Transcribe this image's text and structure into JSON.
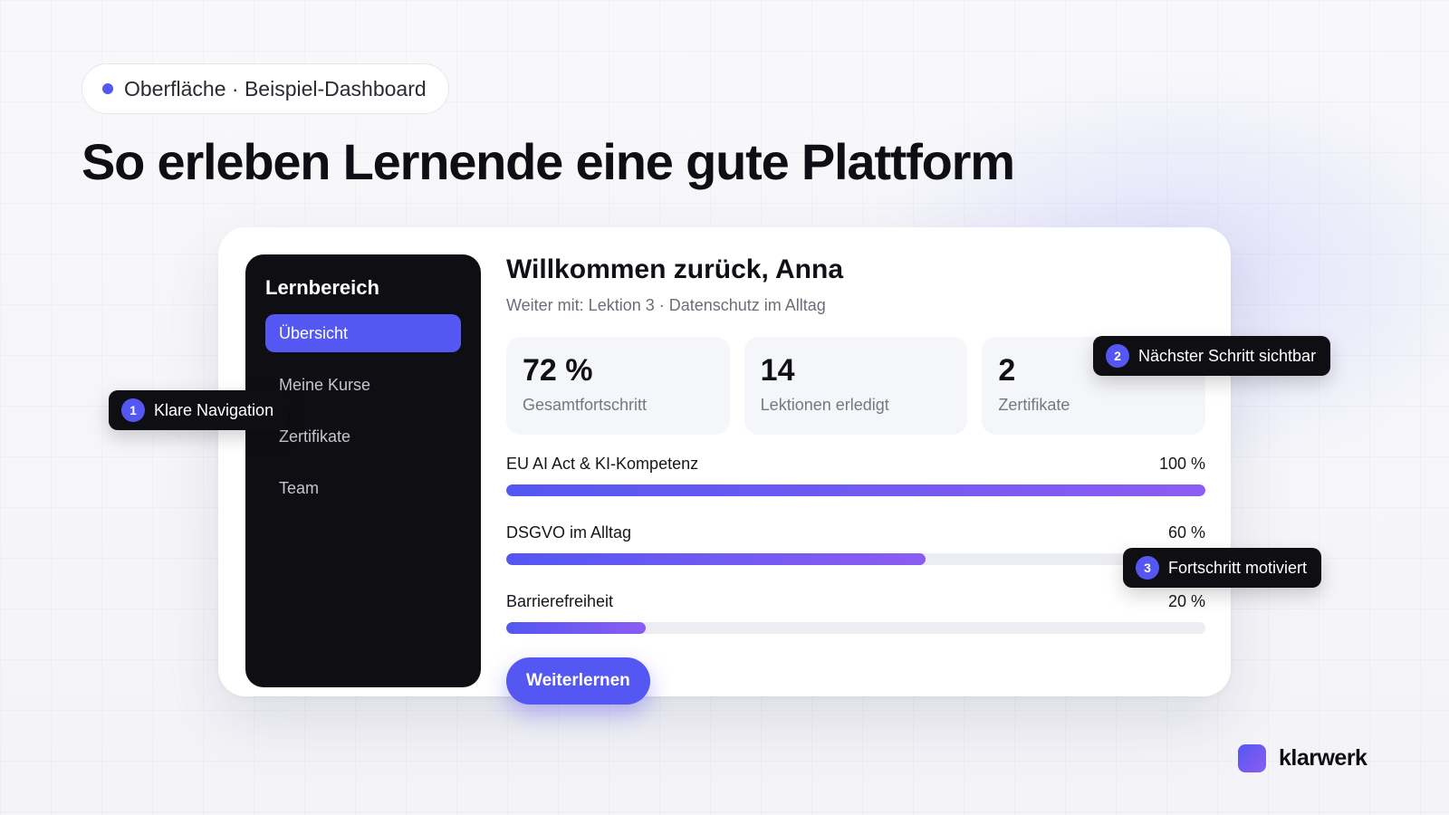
{
  "eyebrow": {
    "label": "Oberfläche · Beispiel-Dashboard"
  },
  "headline": "So erleben Lernende eine gute Plattform",
  "sidebar": {
    "title": "Lernbereich",
    "items": [
      {
        "label": "Übersicht",
        "active": true
      },
      {
        "label": "Meine Kurse"
      },
      {
        "label": "Zertifikate"
      },
      {
        "label": "Team"
      }
    ]
  },
  "main": {
    "welcome": "Willkommen zurück, Anna",
    "next_step": "Weiter mit: Lektion 3 · Datenschutz im Alltag",
    "stats": [
      {
        "value": "72 %",
        "label": "Gesamtfortschritt"
      },
      {
        "value": "14",
        "label": "Lektionen erledigt"
      },
      {
        "value": "2",
        "label": "Zertifikate"
      }
    ],
    "courses": [
      {
        "name": "EU AI Act & KI-Kompetenz",
        "percent_label": "100 %",
        "progress": 1.0
      },
      {
        "name": "DSGVO im Alltag",
        "percent_label": "60 %",
        "progress": 0.6
      },
      {
        "name": "Barrierefreiheit",
        "percent_label": "20 %",
        "progress": 0.2
      }
    ],
    "cta_label": "Weiterlernen"
  },
  "callouts": [
    {
      "number": "1",
      "label": "Klare Navigation"
    },
    {
      "number": "2",
      "label": "Nächster Schritt sichtbar"
    },
    {
      "number": "3",
      "label": "Fortschritt motiviert"
    }
  ],
  "brand": {
    "name": "klarwerk"
  },
  "colors": {
    "accent": "#5457f2",
    "accent_2": "#8c5cf2",
    "dark": "#0f0f13"
  }
}
